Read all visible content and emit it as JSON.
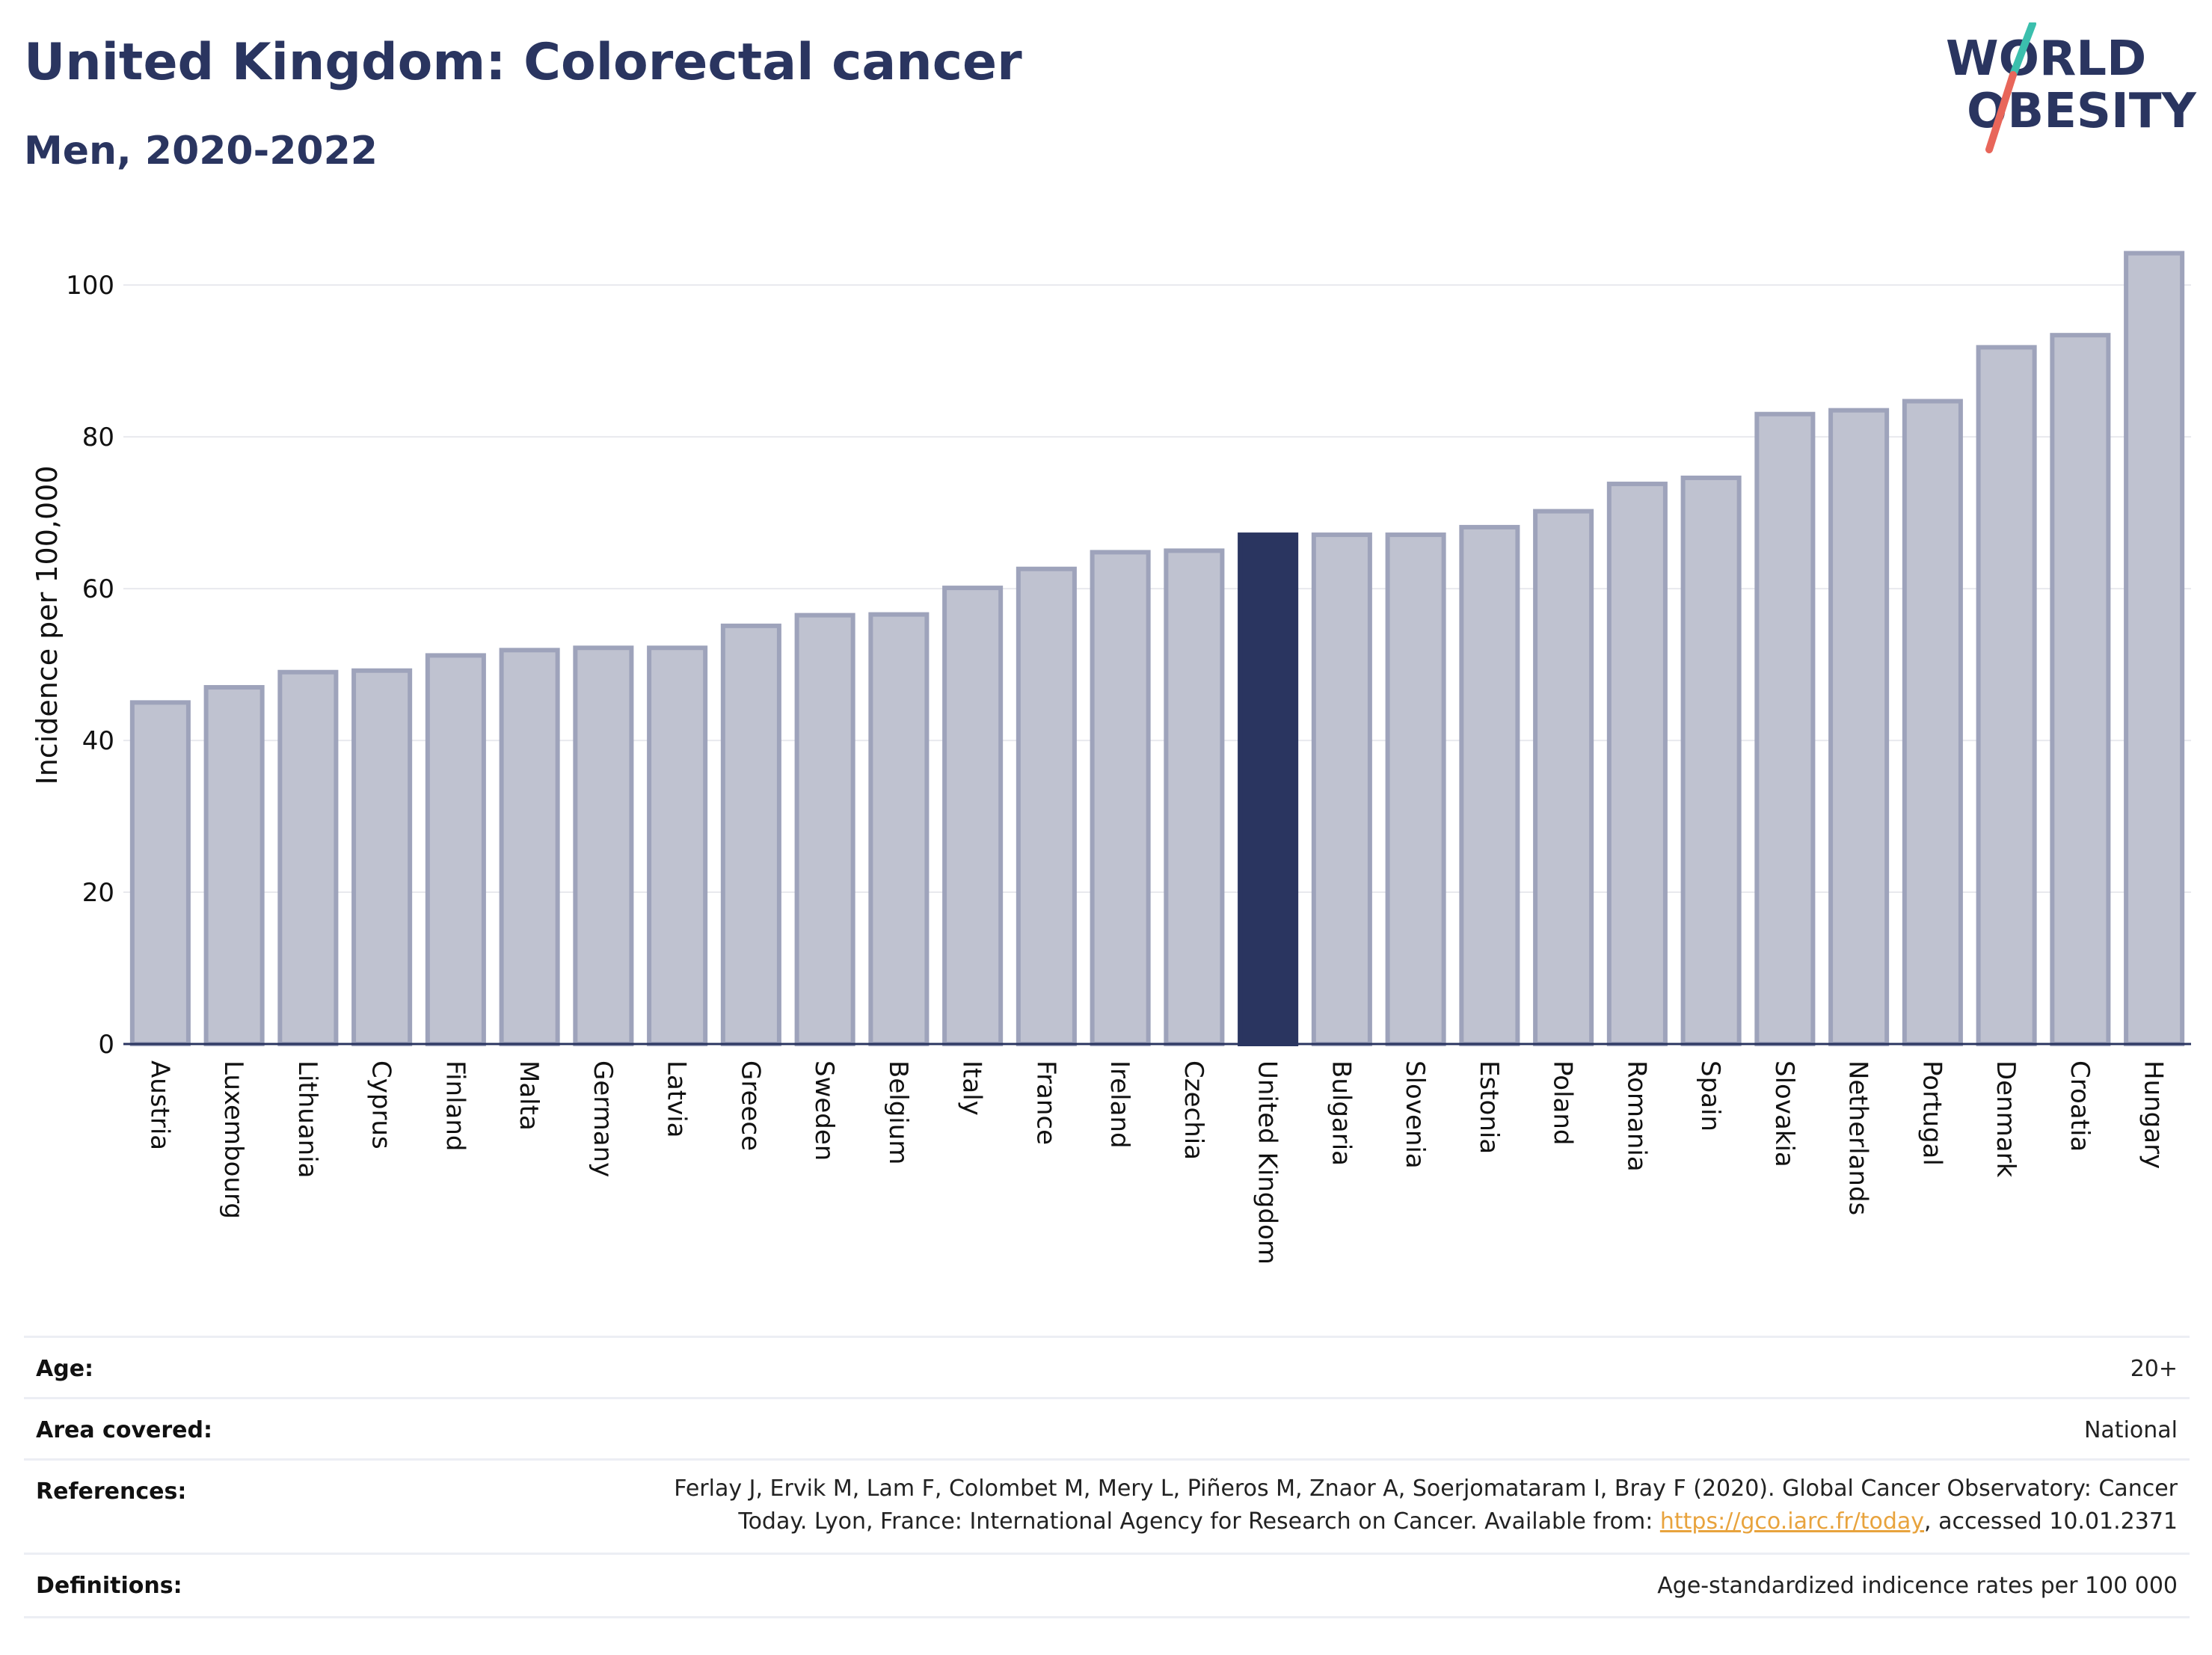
{
  "header": {
    "title": "United Kingdom: Colorectal cancer",
    "subtitle": "Men, 2020-2022"
  },
  "logo": {
    "line1": "WORLD",
    "line2": "OBESITY",
    "text_color": "#2a3560",
    "slash_top_color": "#3bbfad",
    "slash_bottom_color": "#e8665a"
  },
  "chart_data": {
    "type": "bar",
    "title": "United Kingdom: Colorectal cancer",
    "subtitle": "Men, 2020-2022",
    "xlabel": "",
    "ylabel": "Incidence per 100,000",
    "ylim": [
      0,
      108
    ],
    "yticks": [
      0,
      20,
      40,
      60,
      80,
      100
    ],
    "grid": true,
    "highlight": "United Kingdom",
    "colors": {
      "bar": "#bfc2d0",
      "bar_border": "#9ea3bb",
      "highlight": "#2a3560",
      "grid": "#e8e9ee"
    },
    "categories": [
      "Austria",
      "Luxembourg",
      "Lithuania",
      "Cyprus",
      "Finland",
      "Malta",
      "Germany",
      "Latvia",
      "Greece",
      "Sweden",
      "Belgium",
      "Italy",
      "France",
      "Ireland",
      "Czechia",
      "United Kingdom",
      "Bulgaria",
      "Slovenia",
      "Estonia",
      "Poland",
      "Romania",
      "Spain",
      "Slovakia",
      "Netherlands",
      "Portugal",
      "Denmark",
      "Croatia",
      "Hungary"
    ],
    "values": [
      45.0,
      47.0,
      49.0,
      49.2,
      51.2,
      51.9,
      52.2,
      52.2,
      55.1,
      56.5,
      56.6,
      60.1,
      62.6,
      64.8,
      65.0,
      67.1,
      67.1,
      67.1,
      68.1,
      70.2,
      73.8,
      74.6,
      83.0,
      83.5,
      84.7,
      91.8,
      93.4,
      104.2
    ]
  },
  "meta": {
    "age": {
      "label": "Age:",
      "value": "20+"
    },
    "area": {
      "label": "Area covered:",
      "value": "National"
    },
    "references": {
      "label": "References:",
      "line1": "Ferlay J, Ervik M, Lam F, Colombet M, Mery L, Piñeros M, Znaor A, Soerjomataram I, Bray F (2020). Global Cancer Observatory: Cancer",
      "line2_pre": "Today. Lyon, France: International Agency for Research on Cancer. Available from: ",
      "link": "https://gco.iarc.fr/today",
      "line2_post": ", accessed 10.01.2371"
    },
    "definitions": {
      "label": "Definitions:",
      "value": "Age-standardized indicence rates per 100 000"
    }
  }
}
